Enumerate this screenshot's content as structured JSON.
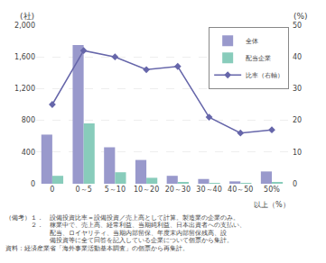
{
  "chart_data": {
    "type": "bar",
    "categories": [
      "0",
      "0～5",
      "5～10",
      "10～20",
      "20～30",
      "30～40",
      "40～50",
      "50%"
    ],
    "series": [
      {
        "name": "全体",
        "color": "#9999cc",
        "values": [
          620,
          1750,
          460,
          300,
          100,
          60,
          30,
          155
        ]
      },
      {
        "name": "配当企業",
        "color": "#88ccbb",
        "values": [
          100,
          760,
          145,
          75,
          20,
          5,
          8,
          20
        ]
      },
      {
        "name": "比率（右軸）",
        "type": "line",
        "axis": "y2",
        "color": "#6666aa",
        "marker": "diamond",
        "values": [
          25,
          42,
          40,
          36,
          37,
          21,
          16,
          17
        ]
      }
    ],
    "ylabel": "(社)",
    "y2label": "(%)",
    "ylim": [
      0,
      2000
    ],
    "yticks": [
      0,
      400,
      800,
      {
        "value": 1200,
        "label": "1,200"
      },
      {
        "value": 1600,
        "label": "1,600"
      },
      {
        "value": 2000,
        "label": "2,000"
      }
    ],
    "y2lim": [
      0,
      50
    ],
    "y2ticks": [
      0,
      10,
      20,
      30,
      40,
      50
    ],
    "annotations": [
      "以上（%）"
    ],
    "notes": [
      "（備考）１．　設備投資比率＝設備投資／売上高として計算。製造業の企業のみ。",
      "　　　　２．　稼業中で、売上高、経常利益、当期純利益、日本出資者への支払い、",
      "　　　　　　　配当、ロイヤリティ、当期内部留保、年度末内部留保残高、設",
      "　　　　　　　備投資等に全て回答を記入している企業について個票から集計。",
      "資料：経済産業省「海外事業活動基本調査」の個票から再集計。"
    ],
    "grid": true,
    "legend": "upper right"
  }
}
